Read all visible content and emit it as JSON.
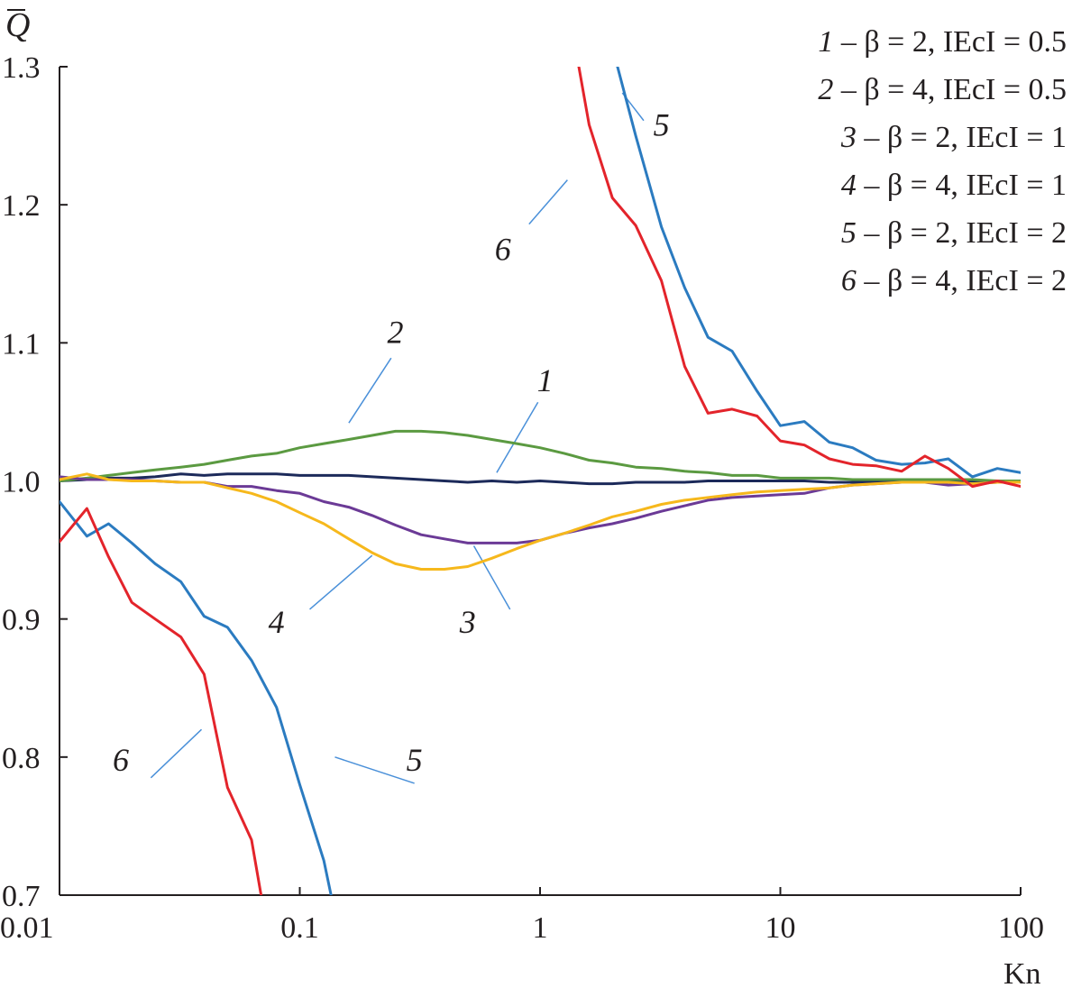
{
  "chart_data": {
    "type": "line",
    "title": "",
    "xlabel": "Kn",
    "ylabel": "Q",
    "xscale": "log",
    "xlim": [
      0.01,
      100
    ],
    "ylim": [
      0.7,
      1.3
    ],
    "xticks": [
      "0.01",
      "0.1",
      "1",
      "10",
      "100"
    ],
    "yticks": [
      "0.7",
      "0.8",
      "0.9",
      "1.0",
      "1.1",
      "1.2",
      "1.3"
    ],
    "series": [
      {
        "id": "1",
        "name": "β = 2, IEcI = 0.5",
        "color": "#1c2a5a",
        "x": [
          0.01,
          0.013,
          0.016,
          0.02,
          0.025,
          0.032,
          0.04,
          0.05,
          0.063,
          0.08,
          0.1,
          0.126,
          0.16,
          0.2,
          0.25,
          0.32,
          0.4,
          0.5,
          0.63,
          0.8,
          1,
          1.26,
          1.6,
          2,
          2.5,
          3.2,
          4,
          5,
          6.3,
          8,
          10,
          12.6,
          16,
          20,
          25,
          32,
          40,
          50,
          63,
          80,
          100
        ],
        "y": [
          1.0,
          1.001,
          1.002,
          1.002,
          1.003,
          1.005,
          1.004,
          1.005,
          1.005,
          1.005,
          1.004,
          1.004,
          1.004,
          1.003,
          1.002,
          1.001,
          1.0,
          0.999,
          1.0,
          0.999,
          1.0,
          0.999,
          0.998,
          0.998,
          0.999,
          0.999,
          0.999,
          1.0,
          1.0,
          1.0,
          1.0,
          1.0,
          0.999,
          0.999,
          0.999,
          1.0,
          1.0,
          1.0,
          1.0,
          1.0,
          1.0
        ]
      },
      {
        "id": "2",
        "name": "β = 4, IEcI = 0.5",
        "color": "#5b9a41",
        "x": [
          0.01,
          0.013,
          0.016,
          0.02,
          0.025,
          0.032,
          0.04,
          0.05,
          0.063,
          0.08,
          0.1,
          0.126,
          0.16,
          0.2,
          0.25,
          0.32,
          0.4,
          0.5,
          0.63,
          0.8,
          1,
          1.26,
          1.6,
          2,
          2.5,
          3.2,
          4,
          5,
          6.3,
          8,
          10,
          12.6,
          16,
          20,
          25,
          32,
          40,
          50,
          63,
          80,
          100
        ],
        "y": [
          1.0,
          1.002,
          1.004,
          1.006,
          1.008,
          1.01,
          1.012,
          1.015,
          1.018,
          1.02,
          1.024,
          1.027,
          1.03,
          1.033,
          1.036,
          1.036,
          1.035,
          1.033,
          1.03,
          1.027,
          1.024,
          1.02,
          1.015,
          1.013,
          1.01,
          1.009,
          1.007,
          1.006,
          1.004,
          1.004,
          1.002,
          1.002,
          1.002,
          1.001,
          1.001,
          1.001,
          1.001,
          1.001,
          1.001,
          1.0,
          1.0
        ]
      },
      {
        "id": "3",
        "name": "β = 2, IEcI = 1",
        "color": "#6b3a96",
        "x": [
          0.01,
          0.013,
          0.016,
          0.02,
          0.025,
          0.032,
          0.04,
          0.05,
          0.063,
          0.08,
          0.1,
          0.126,
          0.16,
          0.2,
          0.25,
          0.32,
          0.4,
          0.5,
          0.63,
          0.8,
          1,
          1.26,
          1.6,
          2,
          2.5,
          3.2,
          4,
          5,
          6.3,
          8,
          10,
          12.6,
          16,
          20,
          25,
          32,
          40,
          50,
          63,
          80,
          100
        ],
        "y": [
          1.003,
          1.001,
          1.001,
          1.001,
          1.0,
          0.999,
          0.999,
          0.996,
          0.996,
          0.993,
          0.991,
          0.985,
          0.981,
          0.975,
          0.968,
          0.961,
          0.958,
          0.955,
          0.955,
          0.955,
          0.957,
          0.962,
          0.966,
          0.969,
          0.973,
          0.978,
          0.982,
          0.986,
          0.988,
          0.989,
          0.99,
          0.991,
          0.995,
          0.997,
          0.998,
          0.999,
          0.999,
          0.997,
          0.998,
          0.999,
          0.999
        ]
      },
      {
        "id": "4",
        "name": "β = 4, IEcI = 1",
        "color": "#f6b81c",
        "x": [
          0.01,
          0.013,
          0.016,
          0.02,
          0.025,
          0.032,
          0.04,
          0.05,
          0.063,
          0.08,
          0.1,
          0.126,
          0.16,
          0.2,
          0.25,
          0.32,
          0.4,
          0.5,
          0.63,
          0.8,
          1,
          1.26,
          1.6,
          2,
          2.5,
          3.2,
          4,
          5,
          6.3,
          8,
          10,
          12.6,
          16,
          20,
          25,
          32,
          40,
          50,
          63,
          80,
          100
        ],
        "y": [
          1.001,
          1.005,
          1.001,
          1.0,
          1.0,
          0.999,
          0.999,
          0.995,
          0.991,
          0.985,
          0.977,
          0.969,
          0.958,
          0.948,
          0.94,
          0.936,
          0.936,
          0.938,
          0.944,
          0.951,
          0.957,
          0.962,
          0.968,
          0.974,
          0.978,
          0.983,
          0.986,
          0.988,
          0.99,
          0.992,
          0.993,
          0.994,
          0.995,
          0.997,
          0.998,
          0.999,
          0.999,
          0.999,
          0.998,
          0.999,
          0.999
        ]
      },
      {
        "id": "5",
        "name": "β = 2, IEcI = 2",
        "color": "#2b7bc0",
        "x": [
          0.01,
          0.013,
          0.016,
          0.02,
          0.025,
          0.032,
          0.04,
          0.05,
          0.063,
          0.08,
          0.1,
          0.126,
          0.135,
          2.1,
          2.5,
          3.2,
          4,
          5,
          6.3,
          8,
          10,
          12.6,
          16,
          20,
          25,
          32,
          40,
          50,
          63,
          80,
          100
        ],
        "y": [
          0.985,
          0.96,
          0.969,
          0.955,
          0.94,
          0.927,
          0.902,
          0.894,
          0.87,
          0.836,
          0.78,
          0.725,
          0.7,
          1.3,
          1.25,
          1.184,
          1.14,
          1.104,
          1.094,
          1.065,
          1.04,
          1.043,
          1.028,
          1.024,
          1.015,
          1.012,
          1.013,
          1.016,
          1.003,
          1.009,
          1.006
        ]
      },
      {
        "id": "6",
        "name": "β = 4, IEcI = 2",
        "color": "#e3242b",
        "x": [
          0.01,
          0.013,
          0.016,
          0.02,
          0.025,
          0.032,
          0.04,
          0.05,
          0.063,
          0.069,
          1.45,
          1.6,
          2,
          2.5,
          3.2,
          4,
          5,
          6.3,
          8,
          10,
          12.6,
          16,
          20,
          25,
          32,
          40,
          50,
          63,
          80,
          100
        ],
        "y": [
          0.956,
          0.98,
          0.945,
          0.912,
          0.9,
          0.887,
          0.86,
          0.778,
          0.74,
          0.7,
          1.3,
          1.258,
          1.205,
          1.185,
          1.145,
          1.083,
          1.049,
          1.052,
          1.047,
          1.029,
          1.026,
          1.016,
          1.012,
          1.011,
          1.007,
          1.018,
          1.009,
          0.996,
          1.0,
          0.996
        ]
      }
    ],
    "legend_position": "top-right",
    "legend": [
      {
        "num": "1",
        "text": " – β = 2, IEcI = 0.5"
      },
      {
        "num": "2",
        "text": " – β = 4, IEcI = 0.5"
      },
      {
        "num": "3",
        "text": " – β = 2, IEcI = 1"
      },
      {
        "num": "4",
        "text": " – β = 4, IEcI = 1"
      },
      {
        "num": "5",
        "text": " – β = 2, IEcI = 2"
      },
      {
        "num": "6",
        "text": " – β = 4, IEcI = 2"
      }
    ],
    "annotations": [
      {
        "text": "1",
        "x": 1.05,
        "y": 1.065,
        "lx1": 0.98,
        "ly1": 1.057,
        "lx2": 0.66,
        "ly2": 1.006
      },
      {
        "text": "2",
        "x": 0.25,
        "y": 1.1,
        "lx1": 0.24,
        "ly1": 1.089,
        "lx2": 0.16,
        "ly2": 1.042
      },
      {
        "text": "3",
        "x": 0.5,
        "y": 0.89,
        "lx1": 0.75,
        "ly1": 0.907,
        "lx2": 0.53,
        "ly2": 0.953
      },
      {
        "text": "4",
        "x": 0.08,
        "y": 0.89,
        "lx1": 0.11,
        "ly1": 0.907,
        "lx2": 0.2,
        "ly2": 0.946
      },
      {
        "text": "5",
        "x": 3.2,
        "y": 1.25,
        "lx1": 2.7,
        "ly1": 1.261,
        "lx2": 2.2,
        "ly2": 1.281
      },
      {
        "text": "6",
        "x": 0.7,
        "y": 1.16,
        "lx1": 0.9,
        "ly1": 1.186,
        "lx2": 1.3,
        "ly2": 1.218
      },
      {
        "text": "5",
        "x": 0.3,
        "y": 0.79,
        "lx1": 0.14,
        "ly1": 0.8,
        "lx2": 0.3,
        "ly2": 0.781
      },
      {
        "text": "6",
        "x": 0.018,
        "y": 0.79,
        "lx1": 0.024,
        "ly1": 0.785,
        "lx2": 0.039,
        "ly2": 0.82
      }
    ]
  }
}
